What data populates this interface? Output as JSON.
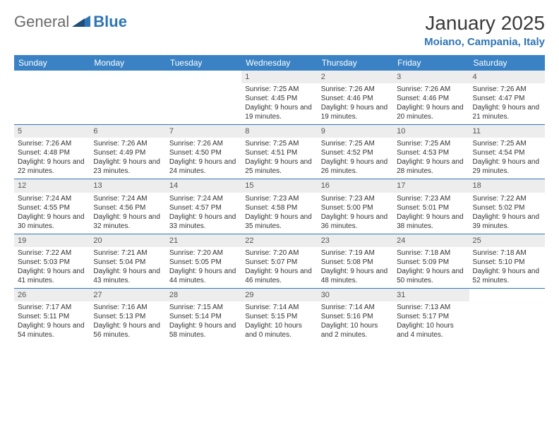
{
  "logo": {
    "part1": "General",
    "part2": "Blue"
  },
  "title": "January 2025",
  "location": "Moiano, Campania, Italy",
  "colors": {
    "header_bg": "#3a82c4",
    "accent": "#2e75b6",
    "daynum_bg": "#ededed",
    "text": "#333333"
  },
  "weekdays": [
    "Sunday",
    "Monday",
    "Tuesday",
    "Wednesday",
    "Thursday",
    "Friday",
    "Saturday"
  ],
  "weeks": [
    [
      null,
      null,
      null,
      {
        "n": "1",
        "sr": "7:25 AM",
        "ss": "4:45 PM",
        "dl": "9 hours and 19 minutes."
      },
      {
        "n": "2",
        "sr": "7:26 AM",
        "ss": "4:46 PM",
        "dl": "9 hours and 19 minutes."
      },
      {
        "n": "3",
        "sr": "7:26 AM",
        "ss": "4:46 PM",
        "dl": "9 hours and 20 minutes."
      },
      {
        "n": "4",
        "sr": "7:26 AM",
        "ss": "4:47 PM",
        "dl": "9 hours and 21 minutes."
      }
    ],
    [
      {
        "n": "5",
        "sr": "7:26 AM",
        "ss": "4:48 PM",
        "dl": "9 hours and 22 minutes."
      },
      {
        "n": "6",
        "sr": "7:26 AM",
        "ss": "4:49 PM",
        "dl": "9 hours and 23 minutes."
      },
      {
        "n": "7",
        "sr": "7:26 AM",
        "ss": "4:50 PM",
        "dl": "9 hours and 24 minutes."
      },
      {
        "n": "8",
        "sr": "7:25 AM",
        "ss": "4:51 PM",
        "dl": "9 hours and 25 minutes."
      },
      {
        "n": "9",
        "sr": "7:25 AM",
        "ss": "4:52 PM",
        "dl": "9 hours and 26 minutes."
      },
      {
        "n": "10",
        "sr": "7:25 AM",
        "ss": "4:53 PM",
        "dl": "9 hours and 28 minutes."
      },
      {
        "n": "11",
        "sr": "7:25 AM",
        "ss": "4:54 PM",
        "dl": "9 hours and 29 minutes."
      }
    ],
    [
      {
        "n": "12",
        "sr": "7:24 AM",
        "ss": "4:55 PM",
        "dl": "9 hours and 30 minutes."
      },
      {
        "n": "13",
        "sr": "7:24 AM",
        "ss": "4:56 PM",
        "dl": "9 hours and 32 minutes."
      },
      {
        "n": "14",
        "sr": "7:24 AM",
        "ss": "4:57 PM",
        "dl": "9 hours and 33 minutes."
      },
      {
        "n": "15",
        "sr": "7:23 AM",
        "ss": "4:58 PM",
        "dl": "9 hours and 35 minutes."
      },
      {
        "n": "16",
        "sr": "7:23 AM",
        "ss": "5:00 PM",
        "dl": "9 hours and 36 minutes."
      },
      {
        "n": "17",
        "sr": "7:23 AM",
        "ss": "5:01 PM",
        "dl": "9 hours and 38 minutes."
      },
      {
        "n": "18",
        "sr": "7:22 AM",
        "ss": "5:02 PM",
        "dl": "9 hours and 39 minutes."
      }
    ],
    [
      {
        "n": "19",
        "sr": "7:22 AM",
        "ss": "5:03 PM",
        "dl": "9 hours and 41 minutes."
      },
      {
        "n": "20",
        "sr": "7:21 AM",
        "ss": "5:04 PM",
        "dl": "9 hours and 43 minutes."
      },
      {
        "n": "21",
        "sr": "7:20 AM",
        "ss": "5:05 PM",
        "dl": "9 hours and 44 minutes."
      },
      {
        "n": "22",
        "sr": "7:20 AM",
        "ss": "5:07 PM",
        "dl": "9 hours and 46 minutes."
      },
      {
        "n": "23",
        "sr": "7:19 AM",
        "ss": "5:08 PM",
        "dl": "9 hours and 48 minutes."
      },
      {
        "n": "24",
        "sr": "7:18 AM",
        "ss": "5:09 PM",
        "dl": "9 hours and 50 minutes."
      },
      {
        "n": "25",
        "sr": "7:18 AM",
        "ss": "5:10 PM",
        "dl": "9 hours and 52 minutes."
      }
    ],
    [
      {
        "n": "26",
        "sr": "7:17 AM",
        "ss": "5:11 PM",
        "dl": "9 hours and 54 minutes."
      },
      {
        "n": "27",
        "sr": "7:16 AM",
        "ss": "5:13 PM",
        "dl": "9 hours and 56 minutes."
      },
      {
        "n": "28",
        "sr": "7:15 AM",
        "ss": "5:14 PM",
        "dl": "9 hours and 58 minutes."
      },
      {
        "n": "29",
        "sr": "7:14 AM",
        "ss": "5:15 PM",
        "dl": "10 hours and 0 minutes."
      },
      {
        "n": "30",
        "sr": "7:14 AM",
        "ss": "5:16 PM",
        "dl": "10 hours and 2 minutes."
      },
      {
        "n": "31",
        "sr": "7:13 AM",
        "ss": "5:17 PM",
        "dl": "10 hours and 4 minutes."
      },
      null
    ]
  ],
  "labels": {
    "sunrise": "Sunrise:",
    "sunset": "Sunset:",
    "daylight": "Daylight:"
  }
}
